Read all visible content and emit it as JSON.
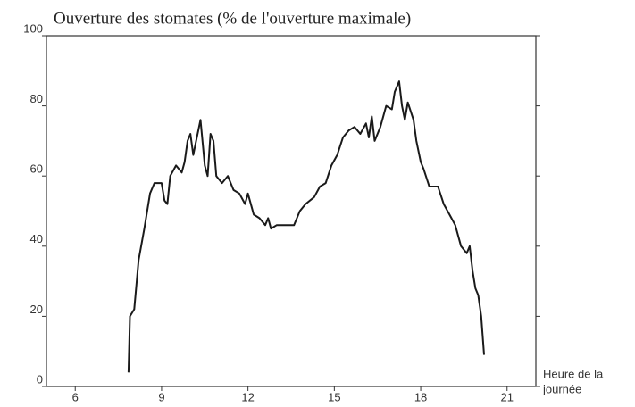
{
  "chart_data": {
    "type": "line",
    "title": "Ouverture des stomates (% de l'ouverture maximale)",
    "x_label": [
      "Heure de la",
      "journée"
    ],
    "x": [
      7.85,
      7.9,
      8.05,
      8.2,
      8.4,
      8.6,
      8.75,
      9.0,
      9.1,
      9.2,
      9.3,
      9.5,
      9.7,
      9.8,
      9.9,
      10.0,
      10.1,
      10.2,
      10.35,
      10.5,
      10.6,
      10.7,
      10.8,
      10.9,
      11.1,
      11.3,
      11.5,
      11.7,
      11.9,
      12.0,
      12.2,
      12.4,
      12.6,
      12.7,
      12.8,
      13.0,
      13.3,
      13.6,
      13.8,
      14.0,
      14.3,
      14.5,
      14.7,
      14.9,
      15.1,
      15.3,
      15.5,
      15.7,
      15.9,
      16.1,
      16.2,
      16.3,
      16.4,
      16.6,
      16.8,
      17.0,
      17.1,
      17.25,
      17.35,
      17.45,
      17.55,
      17.75,
      17.85,
      18.0,
      18.1,
      18.3,
      18.6,
      18.8,
      19.0,
      19.2,
      19.4,
      19.6,
      19.7,
      19.8,
      19.9,
      20.0,
      20.1,
      20.2
    ],
    "series": [
      {
        "name": "Ouverture des stomates",
        "color": "#1a1a1a",
        "values": [
          4,
          20,
          22,
          36,
          45,
          55,
          58,
          58,
          53,
          52,
          60,
          63,
          61,
          64,
          70,
          72,
          66,
          70,
          76,
          63,
          60,
          72,
          70,
          60,
          58,
          60,
          56,
          55,
          52,
          55,
          49,
          48,
          46,
          48,
          45,
          46,
          46,
          46,
          50,
          52,
          54,
          57,
          58,
          63,
          66,
          71,
          73,
          74,
          72,
          75,
          71,
          77,
          70,
          74,
          80,
          79,
          84,
          87,
          80,
          76,
          81,
          76,
          70,
          64,
          62,
          57,
          57,
          52,
          49,
          46,
          40,
          38,
          40,
          33,
          28,
          26,
          20,
          9
        ]
      }
    ],
    "xlim": [
      5,
      22
    ],
    "xticks": [
      6,
      9,
      12,
      15,
      18,
      21
    ],
    "ylim": [
      0,
      100
    ],
    "yticks": [
      0,
      20,
      40,
      60,
      80,
      100
    ],
    "grid": false
  }
}
